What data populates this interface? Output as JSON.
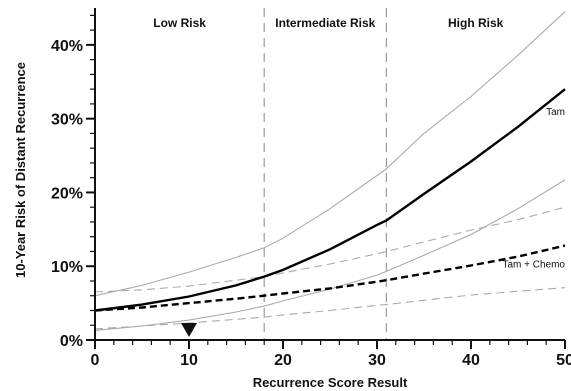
{
  "chart_data": {
    "type": "line",
    "xlabel": "Recurrence Score Result",
    "ylabel": "10-Year Risk of Distant Recurrence",
    "xlim": [
      0,
      50
    ],
    "ylim": [
      0,
      45
    ],
    "x_ticks": [
      "0",
      "10",
      "20",
      "30",
      "40",
      "50"
    ],
    "y_ticks": [
      "0%",
      "10%",
      "20%",
      "30%",
      "40%"
    ],
    "grid": false,
    "risk_bands": [
      {
        "label": "Low Risk",
        "from": 0,
        "to": 18
      },
      {
        "label": "Intermediate Risk",
        "from": 18,
        "to": 31
      },
      {
        "label": "High Risk",
        "from": 31,
        "to": 50
      }
    ],
    "marker": {
      "x": 10,
      "shape": "triangle-down"
    },
    "x": [
      0,
      5,
      10,
      15,
      18,
      20,
      25,
      30,
      31,
      35,
      40,
      45,
      50
    ],
    "series": [
      {
        "name": "Tam",
        "style": "solid",
        "color": "#000000",
        "width": "bold",
        "values": [
          4.0,
          4.8,
          5.9,
          7.4,
          8.6,
          9.5,
          12.3,
          15.6,
          16.2,
          19.8,
          24.2,
          28.9,
          34.0
        ]
      },
      {
        "name": "Tam + Chemo",
        "style": "dashed",
        "color": "#000000",
        "width": "bold",
        "values": [
          4.0,
          4.4,
          5.0,
          5.6,
          6.0,
          6.3,
          7.0,
          7.9,
          8.1,
          9.0,
          10.1,
          11.3,
          12.8
        ]
      },
      {
        "role": "Tam upper",
        "style": "solid",
        "color": "#aaaaaa",
        "width": "thin",
        "values": [
          6.0,
          7.4,
          9.2,
          11.2,
          12.5,
          13.8,
          17.8,
          22.3,
          23.2,
          28.0,
          33.0,
          38.6,
          44.5
        ]
      },
      {
        "role": "Tam lower",
        "style": "solid",
        "color": "#aaaaaa",
        "width": "thin",
        "values": [
          1.3,
          1.9,
          2.7,
          3.8,
          4.6,
          5.3,
          6.9,
          8.8,
          9.3,
          11.5,
          14.3,
          17.8,
          21.7
        ]
      },
      {
        "role": "Tam + Chemo upper",
        "style": "dashed",
        "color": "#aaaaaa",
        "width": "thin",
        "values": [
          6.5,
          6.8,
          7.3,
          8.1,
          8.6,
          9.1,
          10.3,
          11.7,
          12.0,
          13.3,
          14.9,
          16.3,
          18.0
        ]
      },
      {
        "role": "Tam + Chemo lower",
        "style": "dashed",
        "color": "#aaaaaa",
        "width": "thin",
        "values": [
          1.5,
          1.9,
          2.3,
          2.8,
          3.1,
          3.4,
          4.0,
          4.7,
          4.8,
          5.4,
          6.1,
          6.6,
          7.1
        ]
      }
    ]
  }
}
